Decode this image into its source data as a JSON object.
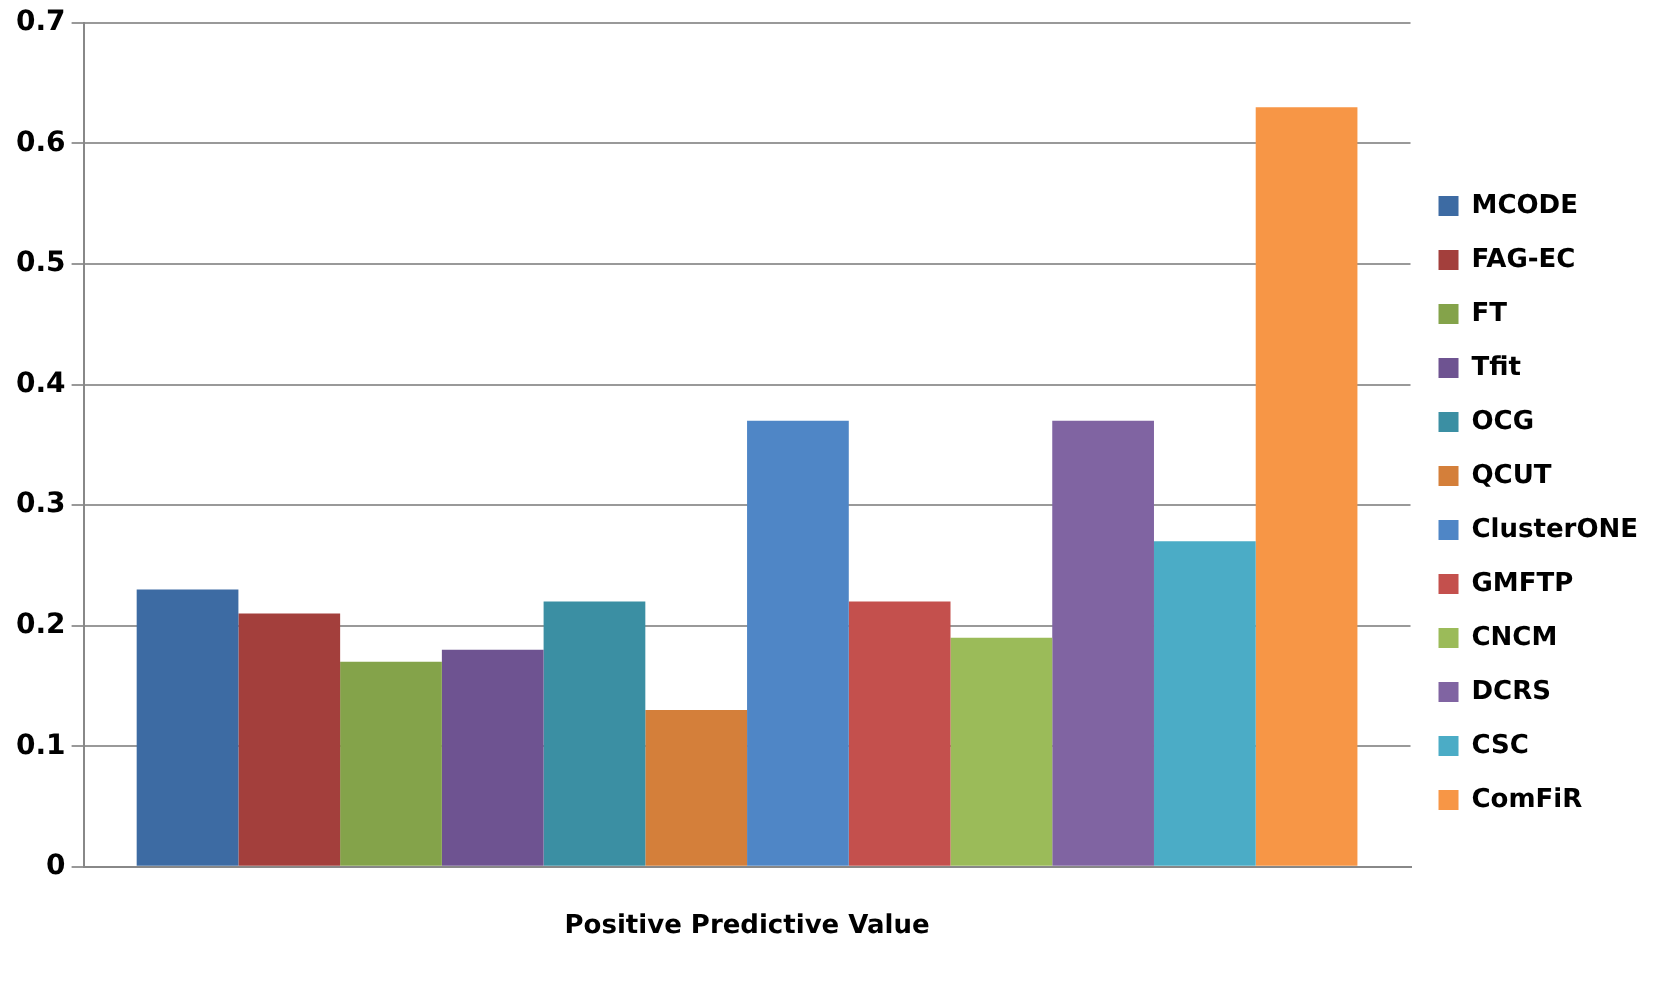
{
  "chart_data": {
    "type": "bar",
    "categories": [
      "Positive Predictive Value"
    ],
    "series": [
      {
        "name": "MCODE",
        "color": "#3d6ba3",
        "values": [
          0.23
        ]
      },
      {
        "name": "FAG-EC",
        "color": "#a33f3c",
        "values": [
          0.21
        ]
      },
      {
        "name": "FT",
        "color": "#84a34a",
        "values": [
          0.17
        ]
      },
      {
        "name": "Tfit",
        "color": "#6e5391",
        "values": [
          0.18
        ]
      },
      {
        "name": "OCG",
        "color": "#3b8fa3",
        "values": [
          0.22
        ]
      },
      {
        "name": "QCUT",
        "color": "#d47f3a",
        "values": [
          0.13
        ]
      },
      {
        "name": "ClusterONE",
        "color": "#4f86c6",
        "values": [
          0.37
        ]
      },
      {
        "name": "GMFTP",
        "color": "#c4504d",
        "values": [
          0.22
        ]
      },
      {
        "name": "CNCM",
        "color": "#9bbb59",
        "values": [
          0.19
        ]
      },
      {
        "name": "DCRS",
        "color": "#8064a2",
        "values": [
          0.37
        ]
      },
      {
        "name": "CSC",
        "color": "#4bacc6",
        "values": [
          0.27
        ]
      },
      {
        "name": "ComFiR",
        "color": "#f79646",
        "values": [
          0.63
        ]
      }
    ],
    "ylim": [
      0,
      0.7
    ],
    "yticks": [
      0,
      0.1,
      0.2,
      0.3,
      0.4,
      0.5,
      0.6,
      0.7
    ],
    "grid": "y",
    "legend": "right"
  }
}
